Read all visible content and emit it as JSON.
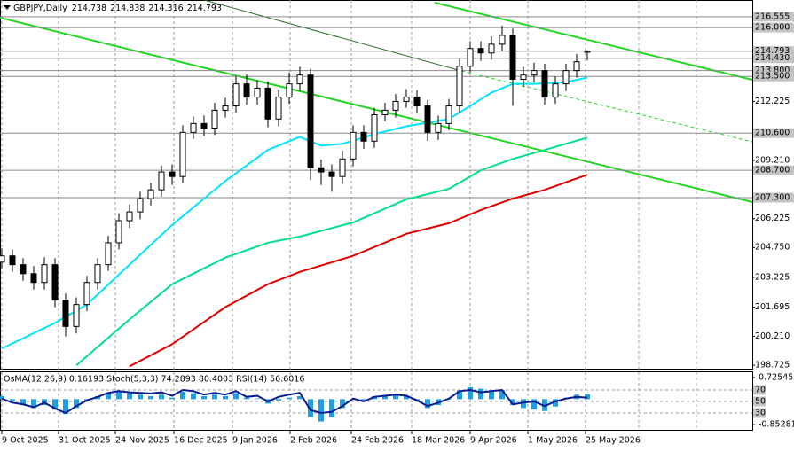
{
  "chart_data": [
    {
      "type": "candlestick",
      "symbol": "GBPJPY,Daily",
      "open": [
        204.0,
        204.32,
        203.87,
        203.41,
        202.96,
        203.87,
        202.06,
        200.71,
        201.83,
        202.96,
        203.87,
        204.99,
        206.12,
        206.57,
        207.25,
        207.7,
        208.61,
        208.38,
        210.64,
        211.09,
        210.86,
        211.77,
        211.99,
        213.12,
        212.44,
        212.9,
        211.32,
        212.44,
        213.12,
        213.57,
        208.83,
        208.61,
        208.38,
        209.28,
        210.64,
        210.19,
        211.54,
        211.77,
        212.22,
        212.44,
        211.99,
        210.64,
        211.09,
        211.99,
        214.02,
        214.93,
        214.7,
        215.15,
        215.6,
        213.35,
        213.57,
        213.8,
        212.44,
        213.12,
        213.8,
        214.738
      ],
      "high": [
        204.7,
        204.65,
        204.2,
        203.8,
        204.25,
        204.2,
        202.4,
        202.2,
        203.3,
        204.2,
        205.35,
        206.5,
        206.95,
        207.6,
        208.05,
        208.95,
        209.0,
        211.0,
        211.45,
        211.5,
        212.15,
        212.4,
        213.5,
        213.6,
        213.3,
        213.25,
        212.8,
        213.7,
        214.0,
        213.9,
        209.25,
        209.0,
        209.7,
        211.0,
        211.0,
        211.9,
        212.15,
        212.6,
        212.85,
        212.8,
        212.3,
        211.5,
        212.35,
        214.4,
        215.3,
        215.3,
        215.55,
        216.1,
        215.95,
        214.0,
        214.2,
        214.15,
        213.5,
        214.15,
        214.65,
        214.838
      ],
      "low": [
        203.65,
        203.5,
        203.05,
        202.6,
        202.6,
        201.7,
        200.2,
        200.35,
        201.5,
        202.6,
        203.55,
        204.65,
        205.75,
        206.2,
        206.9,
        207.35,
        207.95,
        208.05,
        210.3,
        210.45,
        210.5,
        211.4,
        211.65,
        212.05,
        212.05,
        210.9,
        210.95,
        212.1,
        212.75,
        208.2,
        207.95,
        207.6,
        208.0,
        208.9,
        209.8,
        209.85,
        211.2,
        211.4,
        211.9,
        211.6,
        210.2,
        210.25,
        210.75,
        211.65,
        213.7,
        214.3,
        214.35,
        214.8,
        212.0,
        212.95,
        213.2,
        212.05,
        212.1,
        212.75,
        213.45,
        214.316
      ],
      "close": [
        204.32,
        203.87,
        203.41,
        202.96,
        203.87,
        202.06,
        200.71,
        201.83,
        202.96,
        203.87,
        204.99,
        206.12,
        206.57,
        207.25,
        207.7,
        208.61,
        208.38,
        210.64,
        211.09,
        210.86,
        211.77,
        211.99,
        213.12,
        212.44,
        212.9,
        211.32,
        212.44,
        213.12,
        213.57,
        208.83,
        208.61,
        208.38,
        209.28,
        210.64,
        210.19,
        211.54,
        211.77,
        212.22,
        212.44,
        211.99,
        210.64,
        211.09,
        211.99,
        214.02,
        214.93,
        214.7,
        215.15,
        215.6,
        213.35,
        213.57,
        213.8,
        212.44,
        213.12,
        213.8,
        214.25,
        214.793
      ],
      "series": [
        {
          "color": "#00e5ff",
          "x": [
            0,
            5,
            8,
            12,
            16,
            21,
            25,
            28,
            30,
            32,
            35,
            38,
            42,
            44,
            46,
            48,
            50,
            53,
            55
          ],
          "values": [
            199.58,
            200.89,
            201.83,
            203.87,
            205.9,
            208.15,
            209.74,
            210.41,
            209.96,
            210.05,
            210.55,
            210.95,
            211.32,
            211.99,
            212.67,
            213.12,
            213.12,
            213.21,
            213.44
          ]
        },
        {
          "color": "#00e08a",
          "x": [
            7,
            12,
            16,
            21,
            25,
            28,
            33,
            38,
            42,
            45,
            48,
            51,
            55
          ],
          "values": [
            198.72,
            201.07,
            202.87,
            204.23,
            204.99,
            205.31,
            206.03,
            207.21,
            207.75,
            208.7,
            209.28,
            209.74,
            210.37
          ]
        },
        {
          "color": "#e00000",
          "x": [
            12,
            16,
            21,
            25,
            28,
            33,
            38,
            42,
            45,
            48,
            51,
            55
          ],
          "values": [
            198.67,
            199.8,
            201.7,
            202.87,
            203.5,
            204.32,
            205.45,
            205.99,
            206.67,
            207.25,
            207.7,
            208.47
          ]
        }
      ],
      "xlim": [
        -0.1667,
        70.5
      ],
      "xticks": [
        {
          "value": 0,
          "label": "9 Oct 2025"
        },
        {
          "value": 5.33,
          "label": "31 Oct 2025"
        },
        {
          "value": 10.67,
          "label": "24 Nov 2025"
        },
        {
          "value": 16.17,
          "label": "16 Dec 2025"
        },
        {
          "value": 21.67,
          "label": "9 Jan 2026"
        },
        {
          "value": 27.08,
          "label": "2 Feb 2026"
        },
        {
          "value": 32.83,
          "label": "24 Feb 2026"
        },
        {
          "value": 38.5,
          "label": "18 Mar 2026"
        },
        {
          "value": 44,
          "label": "9 Apr 2026"
        },
        {
          "value": 49.42,
          "label": "1 May 2026"
        },
        {
          "value": 54.83,
          "label": "25 May 2026"
        }
      ],
      "ylim": [
        198.55,
        217.41
      ],
      "yticks": [
        212.225,
        {
          "value": 209.21,
          "label": "209.210"
        },
        206.225,
        {
          "value": 204.75,
          "label": "204.750"
        },
        203.225,
        201.695,
        {
          "value": 200.21,
          "label": "200.210"
        },
        198.725
      ],
      "levels": [
        216.555,
        {
          "value": 216,
          "label": "216.000"
        },
        214.793,
        {
          "value": 214.43,
          "label": "214.430"
        },
        {
          "value": 213.8,
          "label": "213.800"
        },
        {
          "value": 213.5,
          "label": "213.500"
        },
        {
          "value": 210.6,
          "label": "210.600"
        },
        {
          "value": 208.7,
          "label": "208.700"
        },
        {
          "value": 207.3,
          "label": "207.300"
        }
      ],
      "grid": true
    },
    {
      "type": "indicator",
      "label": "OsMA(12,26,9) 0.16193 Stoch(5,3,3) 74.2893 80.4003 RSI(14) 56.6016",
      "xlim": [
        -0.1667,
        70.5
      ],
      "osma": {
        "color": "#1e9fe0",
        "values": [
          0.1,
          -0.05,
          -0.2,
          -0.3,
          -0.2,
          -0.35,
          -0.5,
          -0.3,
          -0.05,
          0.1,
          0.2,
          0.25,
          0.2,
          0.15,
          0.1,
          0.15,
          0.05,
          0.25,
          0.2,
          0.1,
          0.15,
          0.1,
          0.2,
          0.05,
          0.02,
          -0.15,
          -0.05,
          0.05,
          0.1,
          -0.6,
          -0.75,
          -0.6,
          -0.3,
          0.0,
          -0.05,
          0.1,
          0.12,
          0.15,
          0.1,
          -0.05,
          -0.3,
          -0.2,
          0.0,
          0.3,
          0.4,
          0.35,
          0.3,
          0.3,
          -0.2,
          -0.3,
          -0.35,
          -0.4,
          -0.25,
          0.05,
          0.15,
          0.16193
        ]
      },
      "rsi": {
        "color": "#0a1a90",
        "values": [
          55,
          48,
          45,
          40,
          48,
          38,
          30,
          42,
          52,
          58,
          65,
          68,
          66,
          65,
          64,
          66,
          60,
          70,
          68,
          62,
          65,
          62,
          68,
          58,
          60,
          50,
          58,
          62,
          65,
          35,
          30,
          32,
          42,
          55,
          50,
          58,
          60,
          62,
          60,
          52,
          42,
          48,
          55,
          68,
          70,
          66,
          68,
          70,
          45,
          48,
          50,
          42,
          50,
          55,
          58,
          56.6016
        ]
      },
      "ylim": [
        -1.046,
        0.889
      ],
      "yticks": [
        0.72545,
        -0.85281
      ],
      "y2lim": [
        0,
        100
      ],
      "y2ticks": [
        30,
        50,
        70
      ]
    }
  ]
}
